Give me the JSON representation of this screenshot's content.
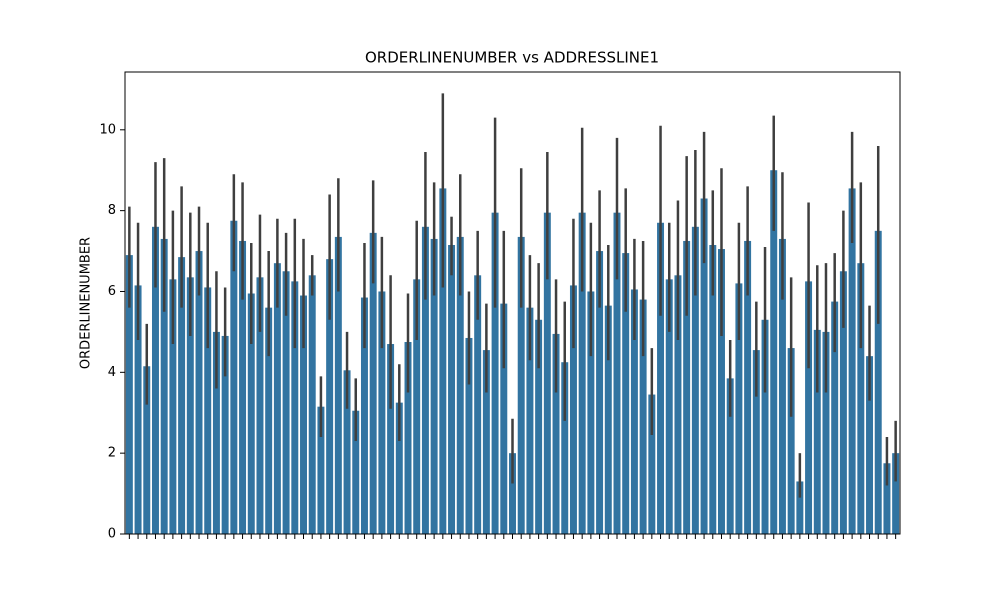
{
  "chart_data": {
    "type": "bar",
    "title": "ORDERLINENUMBER vs ADDRESSLINE1",
    "ylabel": "ORDERLINENUMBER",
    "categories": [
      null,
      null,
      null,
      null,
      null,
      null,
      null,
      null,
      null,
      null,
      null,
      null,
      null,
      null,
      null,
      null,
      null,
      null,
      null,
      null,
      null,
      null,
      null,
      null,
      null,
      null,
      null,
      null,
      null,
      null,
      null,
      null,
      null,
      null,
      null,
      null,
      null,
      null,
      null,
      null,
      null,
      null,
      null,
      null,
      null,
      null,
      null,
      null,
      null,
      null,
      null,
      null,
      null,
      null,
      null,
      null,
      null,
      null,
      null,
      null,
      null,
      null,
      null,
      null,
      null,
      null,
      null,
      null,
      null,
      null,
      null,
      null,
      null,
      null,
      null,
      null,
      null,
      null,
      null,
      null,
      null,
      null,
      null,
      null,
      null,
      null,
      null,
      null,
      null
    ],
    "values": [
      6.9,
      6.15,
      4.15,
      7.6,
      7.3,
      6.3,
      6.85,
      6.35,
      7.0,
      6.1,
      5.0,
      4.9,
      7.75,
      7.25,
      5.95,
      6.35,
      5.6,
      6.7,
      6.5,
      6.25,
      5.9,
      6.4,
      3.15,
      6.8,
      7.35,
      4.05,
      3.05,
      5.85,
      7.45,
      6.0,
      4.7,
      3.25,
      4.75,
      6.3,
      7.6,
      7.3,
      8.55,
      7.15,
      7.35,
      4.85,
      6.4,
      4.55,
      7.95,
      5.7,
      2.0,
      7.35,
      5.6,
      5.3,
      7.95,
      4.95,
      4.25,
      6.15,
      7.95,
      6.0,
      7.0,
      5.65,
      7.95,
      6.95,
      6.05,
      5.8,
      3.45,
      7.7,
      6.3,
      6.4,
      7.25,
      7.6,
      8.3,
      7.15,
      7.05,
      3.85,
      6.2,
      7.25,
      4.55,
      5.3,
      9.0,
      7.3,
      4.6,
      1.3,
      6.25,
      5.05,
      5.0,
      5.75,
      6.5,
      8.55,
      6.7,
      4.4,
      7.5,
      1.75,
      2.0
    ],
    "ci_low": [
      5.6,
      4.8,
      3.2,
      6.1,
      5.5,
      4.7,
      5.6,
      4.9,
      5.9,
      4.6,
      3.6,
      3.9,
      6.5,
      5.8,
      4.7,
      5.0,
      4.4,
      5.6,
      5.4,
      4.6,
      4.6,
      5.9,
      2.4,
      5.3,
      6.0,
      3.1,
      2.3,
      4.6,
      6.2,
      4.6,
      3.1,
      2.3,
      3.5,
      4.8,
      5.8,
      5.9,
      6.1,
      6.4,
      5.9,
      3.7,
      5.3,
      3.5,
      5.6,
      4.1,
      1.25,
      5.6,
      4.3,
      4.1,
      6.3,
      3.5,
      2.8,
      4.6,
      6.0,
      4.4,
      5.6,
      4.3,
      6.3,
      5.5,
      4.8,
      4.4,
      2.45,
      5.4,
      5.0,
      4.8,
      5.4,
      5.9,
      6.7,
      5.9,
      4.9,
      2.9,
      4.8,
      5.9,
      3.4,
      3.5,
      7.5,
      5.8,
      2.9,
      0.9,
      4.1,
      3.5,
      3.5,
      4.5,
      5.1,
      7.2,
      4.6,
      3.3,
      5.2,
      1.2,
      1.3
    ],
    "ci_high": [
      8.1,
      7.7,
      5.2,
      9.2,
      9.3,
      8.0,
      8.6,
      7.95,
      8.1,
      7.7,
      6.5,
      6.1,
      8.9,
      8.7,
      7.2,
      7.9,
      7.0,
      7.8,
      7.45,
      7.8,
      7.3,
      6.9,
      3.9,
      8.4,
      8.8,
      5.0,
      3.85,
      7.2,
      8.75,
      7.35,
      6.4,
      4.2,
      5.95,
      7.75,
      9.45,
      8.7,
      10.9,
      7.85,
      8.9,
      6.0,
      7.5,
      5.7,
      10.3,
      7.5,
      2.85,
      9.05,
      6.9,
      6.7,
      9.45,
      6.3,
      5.75,
      7.8,
      10.05,
      7.7,
      8.5,
      7.15,
      9.8,
      8.55,
      7.3,
      7.25,
      4.6,
      10.1,
      7.7,
      8.25,
      9.35,
      9.5,
      9.95,
      8.5,
      9.05,
      4.8,
      7.7,
      8.6,
      5.75,
      7.1,
      10.35,
      8.95,
      6.35,
      2.0,
      8.2,
      6.65,
      6.7,
      6.95,
      8.0,
      9.95,
      8.7,
      5.65,
      9.6,
      2.4,
      2.8
    ],
    "color": "#3274a1",
    "error_color": "#3f3f3f",
    "ylim": [
      0,
      11.43
    ],
    "yticks": [
      0,
      2,
      4,
      6,
      8,
      10
    ]
  }
}
